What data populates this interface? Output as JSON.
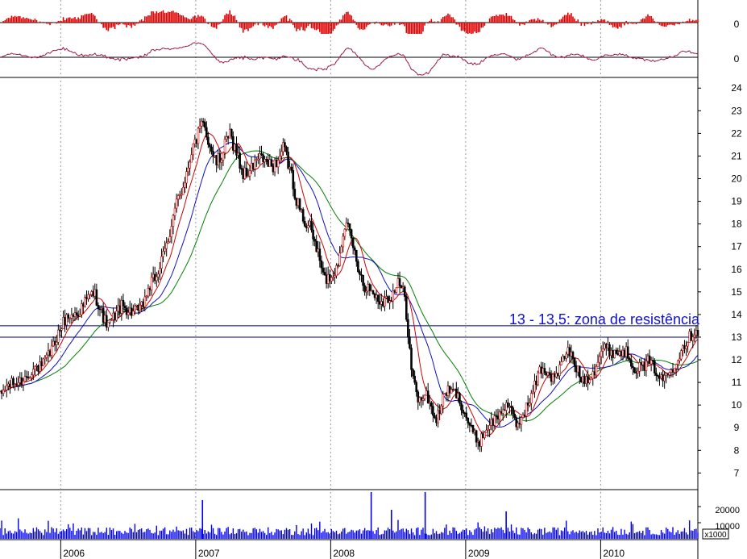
{
  "colors": {
    "background": "#ffffff",
    "grid": "#9a9a9a",
    "candle": "#000000",
    "candle_up_highlight": "#cc0000",
    "ma_short": "#d00000",
    "ma_mid": "#1010c0",
    "ma_long": "#008000",
    "oscillator_1": "#dd0000",
    "oscillator_2_line": "#cc2222",
    "oscillator_2_dots": "#2020cc",
    "volume": "#0000ee",
    "annotation": "#1010d0",
    "resistance_line": "#000080"
  },
  "chart_data": [
    {
      "type": "bar",
      "panel": "oscillator-1",
      "description_scale": "zero-centered histogram",
      "y_tick_labels": [
        "0"
      ]
    },
    {
      "type": "line",
      "panel": "oscillator-2",
      "y_tick_labels": [
        "0"
      ]
    },
    {
      "type": "candlestick",
      "panel": "price",
      "y_tick_labels": [
        "24",
        "23",
        "22",
        "21",
        "20",
        "19",
        "18",
        "17",
        "16",
        "15",
        "14",
        "13",
        "12",
        "11",
        "10",
        "9",
        "8",
        "7"
      ],
      "ylim": [
        6.3,
        24.4
      ],
      "x_tick_labels": [
        "2006",
        "2007",
        "2008",
        "2009",
        "2010"
      ],
      "xlim": [
        2005.55,
        2010.72
      ],
      "year_starts": [
        2006.0,
        2007.0,
        2008.0,
        2009.0,
        2010.0
      ],
      "series_trend": {
        "name": "",
        "x": [
          2005.55,
          2005.7,
          2005.85,
          2005.95,
          2006.05,
          2006.15,
          2006.25,
          2006.35,
          2006.45,
          2006.6,
          2006.7,
          2006.8,
          2006.9,
          2006.97,
          2007.05,
          2007.15,
          2007.25,
          2007.35,
          2007.45,
          2007.55,
          2007.65,
          2007.75,
          2007.85,
          2007.95,
          2008.05,
          2008.1,
          2008.15,
          2008.25,
          2008.35,
          2008.45,
          2008.5,
          2008.55,
          2008.6,
          2008.65,
          2008.7,
          2008.78,
          2008.85,
          2008.92,
          2009.0,
          2009.1,
          2009.2,
          2009.3,
          2009.38,
          2009.45,
          2009.55,
          2009.65,
          2009.75,
          2009.85,
          2009.95,
          2010.02,
          2010.1,
          2010.18,
          2010.25,
          2010.35,
          2010.45,
          2010.55,
          2010.65,
          2010.7
        ],
        "close": [
          10.4,
          11.2,
          11.6,
          12.8,
          13.8,
          14.4,
          14.8,
          13.6,
          14.2,
          14.3,
          15.6,
          17.5,
          19.5,
          21.5,
          22.2,
          20.8,
          21.8,
          20.3,
          20.7,
          20.6,
          21.3,
          19.0,
          17.8,
          15.5,
          16.2,
          17.9,
          17.3,
          15.4,
          14.5,
          15.0,
          15.3,
          14.6,
          11.5,
          10.3,
          10.5,
          9.2,
          10.8,
          10.5,
          9.5,
          8.4,
          9.2,
          10.2,
          8.9,
          10.0,
          11.5,
          11.2,
          12.4,
          11.2,
          11.5,
          12.4,
          12.5,
          12.3,
          11.6,
          12.0,
          11.0,
          12.0,
          12.8,
          13.4
        ]
      },
      "reference_lines": [
        {
          "name": "resistance-low",
          "y": 13.0
        },
        {
          "name": "resistance-high",
          "y": 13.5
        }
      ],
      "annotations": [
        {
          "text": "13 - 13,5: zona de resistência"
        }
      ],
      "moving_averages": [
        "short",
        "mid",
        "long"
      ]
    },
    {
      "type": "bar",
      "panel": "volume",
      "y_tick_labels": [
        "20000",
        "10000"
      ],
      "unit_label": "x1000",
      "ylim": [
        0,
        30000
      ],
      "typical_value": 4500,
      "spikes": [
        {
          "x": 2007.05,
          "value": 24000
        },
        {
          "x": 2008.3,
          "value": 33000
        },
        {
          "x": 2008.7,
          "value": 32000
        },
        {
          "x": 2008.45,
          "value": 18000
        },
        {
          "x": 2009.3,
          "value": 17000
        }
      ]
    }
  ]
}
